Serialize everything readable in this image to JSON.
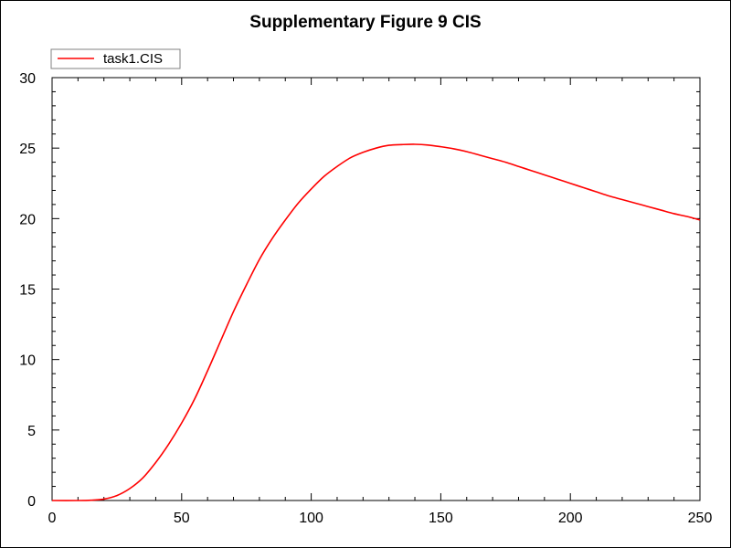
{
  "chart_data": {
    "type": "line",
    "title": "Supplementary Figure 9 CIS",
    "xlabel": "",
    "ylabel": "",
    "xlim": [
      0,
      250
    ],
    "ylim": [
      0,
      30
    ],
    "x_ticks": [
      0,
      50,
      100,
      150,
      200,
      250
    ],
    "y_ticks": [
      0,
      5,
      10,
      15,
      20,
      25,
      30
    ],
    "grid": false,
    "legend_position": "top-left",
    "series": [
      {
        "name": "task1.CIS",
        "color": "#ff0000",
        "x": [
          0,
          10,
          15,
          20,
          25,
          30,
          35,
          40,
          45,
          50,
          55,
          60,
          65,
          70,
          75,
          80,
          85,
          90,
          95,
          100,
          105,
          110,
          115,
          120,
          125,
          130,
          135,
          140,
          145,
          150,
          155,
          160,
          165,
          170,
          175,
          180,
          185,
          190,
          195,
          200,
          205,
          210,
          215,
          220,
          225,
          230,
          235,
          240,
          245,
          250
        ],
        "y": [
          0,
          0,
          0.02,
          0.1,
          0.35,
          0.85,
          1.6,
          2.7,
          4.0,
          5.5,
          7.2,
          9.2,
          11.3,
          13.4,
          15.3,
          17.1,
          18.6,
          19.9,
          21.1,
          22.1,
          23.0,
          23.7,
          24.3,
          24.7,
          25.0,
          25.2,
          25.25,
          25.27,
          25.22,
          25.1,
          24.95,
          24.75,
          24.5,
          24.25,
          24.0,
          23.7,
          23.4,
          23.1,
          22.8,
          22.5,
          22.2,
          21.9,
          21.6,
          21.35,
          21.1,
          20.85,
          20.6,
          20.35,
          20.15,
          19.9
        ]
      }
    ]
  }
}
